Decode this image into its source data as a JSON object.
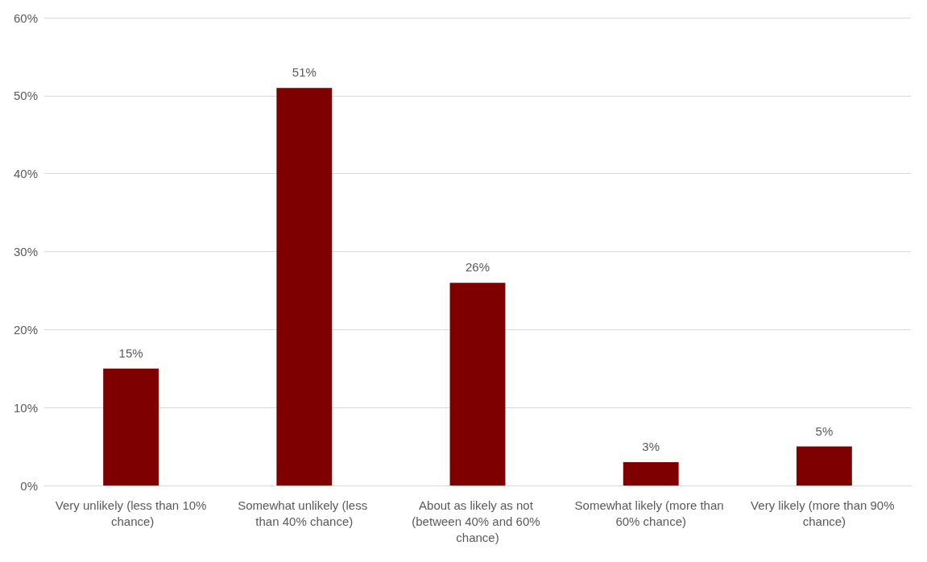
{
  "chart_data": {
    "type": "bar",
    "categories": [
      "Very unlikely (less than 10% chance)",
      "Somewhat unlikely (less than 40% chance)",
      "About as likely as not (between 40% and 60% chance)",
      "Somewhat likely (more than 60% chance)",
      "Very likely (more than 90% chance)"
    ],
    "values": [
      15,
      51,
      26,
      3,
      5
    ],
    "color": "#7f0000",
    "value_labels": [
      "15%",
      "51%",
      "26%",
      "3%",
      "5%"
    ],
    "ylim": [
      0,
      60
    ],
    "yticks": [
      {
        "value": 0,
        "label": "0%"
      },
      {
        "value": 10,
        "label": "10%"
      },
      {
        "value": 20,
        "label": "20%"
      },
      {
        "value": 30,
        "label": "30%"
      },
      {
        "value": 40,
        "label": "40%"
      },
      {
        "value": 50,
        "label": "50%"
      },
      {
        "value": 60,
        "label": "60%"
      }
    ],
    "grid": "y"
  }
}
